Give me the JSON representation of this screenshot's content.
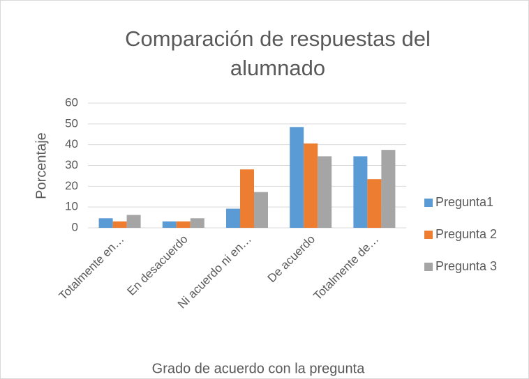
{
  "chart_data": {
    "type": "bar",
    "title": "Comparación de respuestas del alumnado",
    "x_label": "Grado de acuerdo con la pregunta",
    "y_label": "Porcentaje",
    "categories": [
      "Totalmente en…",
      "En desacuerdo",
      "Ni acuerdo ni en…",
      "De acuerdo",
      "Totalmente de…"
    ],
    "series": [
      {
        "name": "Pregunta1",
        "color": "#5b9bd5",
        "values": [
          4.6,
          3.1,
          9.2,
          48.5,
          34.4
        ]
      },
      {
        "name": "Pregunta 2",
        "color": "#ed7d31",
        "values": [
          3.1,
          3.1,
          28.1,
          40.6,
          23.4
        ]
      },
      {
        "name": "Pregunta 3",
        "color": "#a5a5a5",
        "values": [
          6.2,
          4.6,
          17.2,
          34.4,
          37.5
        ]
      }
    ],
    "ylim": [
      0,
      60
    ],
    "yticks": [
      0,
      10,
      20,
      30,
      40,
      50,
      60
    ],
    "grid": true,
    "legend": "right"
  }
}
